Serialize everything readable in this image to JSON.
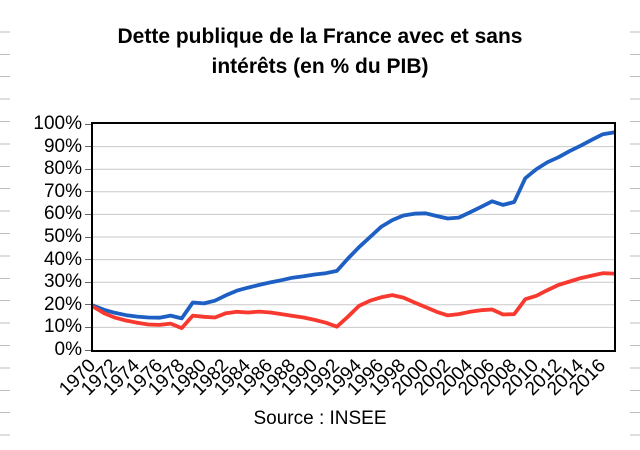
{
  "title": {
    "line1": "Dette publique de la France avec et sans",
    "line2": "intérêts (en % du PIB)"
  },
  "source": {
    "label": "Source : INSEE"
  },
  "colors": {
    "series_avec_interets": "#1D5FC2",
    "series_sans_interets": "#F8392F",
    "gridline": "#C9C9C9",
    "axis_border": "#000000",
    "tick_mark": "#666666",
    "edge_stub": "#BDBDBD",
    "title_text": "#000000"
  },
  "chart_data": {
    "type": "line",
    "title": "Dette publique de la France avec et sans intérêts (en % du PIB)",
    "xlabel": "",
    "ylabel": "",
    "x_range": [
      1970,
      2017
    ],
    "ylim": [
      0,
      100
    ],
    "grid": "horizontal",
    "legend": "none",
    "source": "Source : INSEE",
    "x": [
      1970,
      1971,
      1972,
      1973,
      1974,
      1975,
      1976,
      1977,
      1978,
      1979,
      1980,
      1981,
      1982,
      1983,
      1984,
      1985,
      1986,
      1987,
      1988,
      1989,
      1990,
      1991,
      1992,
      1993,
      1994,
      1995,
      1996,
      1997,
      1998,
      1999,
      2000,
      2001,
      2002,
      2003,
      2004,
      2005,
      2006,
      2007,
      2008,
      2009,
      2010,
      2011,
      2012,
      2013,
      2014,
      2015,
      2016,
      2017
    ],
    "xticks": [
      1970,
      1972,
      1974,
      1976,
      1978,
      1980,
      1982,
      1984,
      1986,
      1988,
      1990,
      1992,
      1994,
      1996,
      1998,
      2000,
      2002,
      2004,
      2006,
      2008,
      2010,
      2012,
      2014,
      2016
    ],
    "xtick_labels": [
      "1970",
      "1972",
      "1974",
      "1976",
      "1978",
      "1980",
      "1982",
      "1984",
      "1986",
      "1988",
      "1990",
      "1992",
      "1994",
      "1996",
      "1998",
      "2000",
      "2002",
      "2004",
      "2006",
      "2008",
      "2010",
      "2012",
      "2014",
      "2016"
    ],
    "yticks": [
      0,
      10,
      20,
      30,
      40,
      50,
      60,
      70,
      80,
      90,
      100
    ],
    "ytick_labels": [
      "0%",
      "10%",
      "20%",
      "30%",
      "40%",
      "50%",
      "60%",
      "70%",
      "80%",
      "90%",
      "100%"
    ],
    "series": [
      {
        "name": "Dette publique avec intérêts (courbe bleue)",
        "color_key": "series_avec_interets",
        "values": [
          19.7,
          17.8,
          16.4,
          15.4,
          14.8,
          14.4,
          14.3,
          15.2,
          14.0,
          21.0,
          20.6,
          21.8,
          24.2,
          26.3,
          27.6,
          28.8,
          29.9,
          30.9,
          32.0,
          32.6,
          33.4,
          34.0,
          35.0,
          40.5,
          45.5,
          50.0,
          54.5,
          57.5,
          59.5,
          60.3,
          60.5,
          59.3,
          58.2,
          58.6,
          60.9,
          63.3,
          65.8,
          64.2,
          65.5,
          76.0,
          80.0,
          83.1,
          85.3,
          88.0,
          90.4,
          93.0,
          95.5,
          96.3
        ]
      },
      {
        "name": "Dette publique sans intérêts (courbe rouge)",
        "color_key": "series_sans_interets",
        "values": [
          19.2,
          16.3,
          14.3,
          13.0,
          12.1,
          11.3,
          11.1,
          11.7,
          9.7,
          15.2,
          14.7,
          14.4,
          16.3,
          16.9,
          16.6,
          17.0,
          16.6,
          15.9,
          15.1,
          14.4,
          13.3,
          12.1,
          10.3,
          14.8,
          19.5,
          21.8,
          23.3,
          24.3,
          23.2,
          21.0,
          19.0,
          16.9,
          15.3,
          15.9,
          16.9,
          17.6,
          17.9,
          15.7,
          15.9,
          22.5,
          24.0,
          26.5,
          28.8,
          30.3,
          31.8,
          32.9,
          34.0,
          33.8
        ]
      }
    ]
  }
}
